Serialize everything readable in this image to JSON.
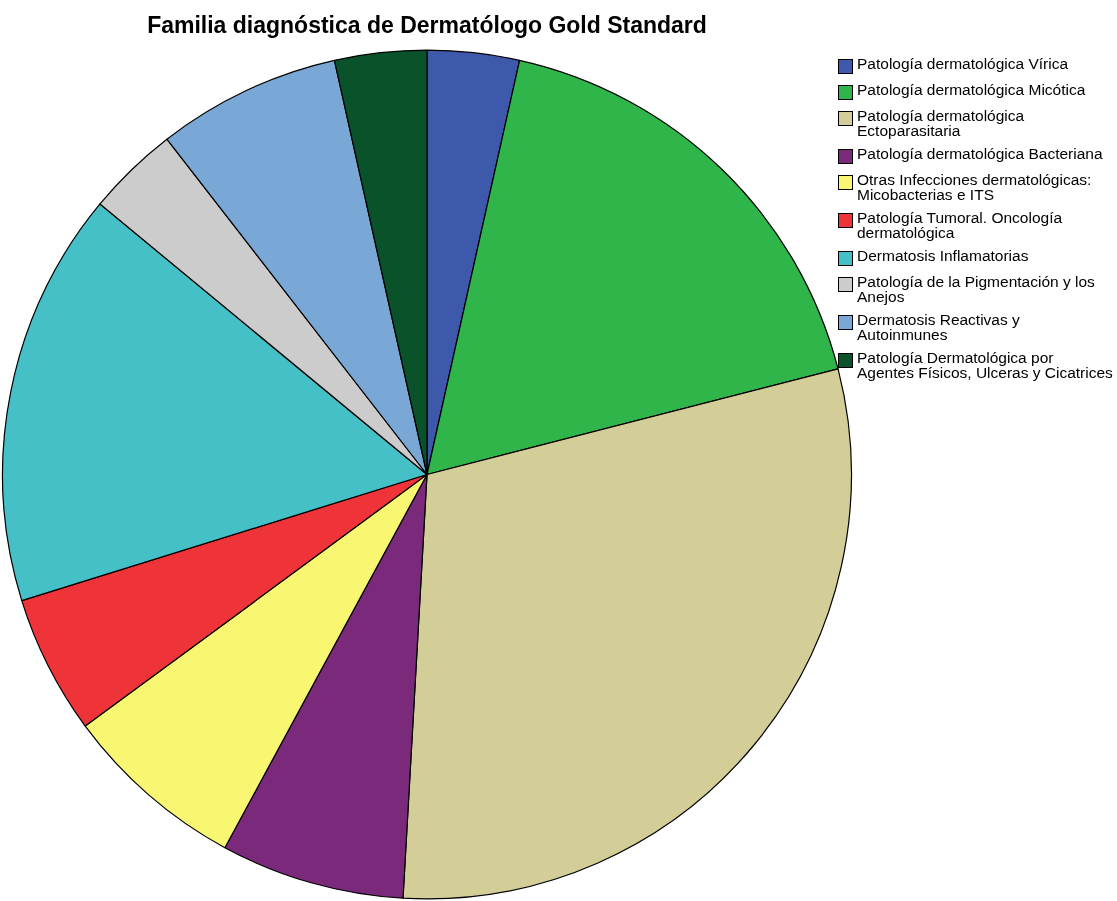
{
  "chart_data": {
    "type": "pie",
    "title": "Familia diagnóstica de Dermatólogo Gold Standard",
    "categories": [
      "Patología dermatológica Vírica",
      "Patología dermatológica Micótica",
      "Patología dermatológica Ectoparasitaria",
      "Patología dermatológica Bacteriana",
      "Otras Infecciones dermatológicas: Micobacterias e ITS",
      "Patología Tumoral. Oncología dermatológica",
      "Dermatosis Inflamatorias",
      "Patología de la Pigmentación y los Anejos",
      "Dermatosis Reactivas y Autoinmunes",
      "Patología Dermatológica por Agentes Físicos, Ulceras y Cicatrices"
    ],
    "values": [
      3.5,
      17.5,
      29.9,
      7.0,
      7.0,
      5.3,
      15.8,
      3.5,
      7.0,
      3.5
    ],
    "colors": [
      "#3e58ac",
      "#2fb54a",
      "#d3ce97",
      "#7b2a7b",
      "#f9f672",
      "#ef3439",
      "#46c0c7",
      "#cccccc",
      "#7aa8d6",
      "#0a5229"
    ],
    "legend": "top right"
  }
}
